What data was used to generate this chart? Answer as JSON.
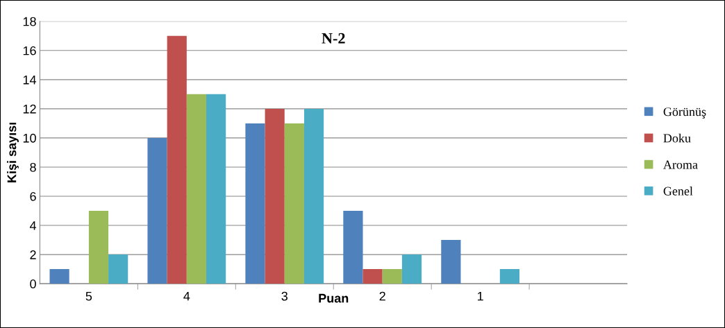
{
  "chart_data": {
    "type": "bar",
    "title": "N-2",
    "xlabel": "Puan",
    "ylabel": "Kişi sayısı",
    "categories": [
      "5",
      "4",
      "3",
      "2",
      "1",
      null
    ],
    "series": [
      {
        "name": "Görünüş",
        "color": "#4f81bd",
        "values": [
          1,
          10,
          11,
          5,
          3,
          null
        ]
      },
      {
        "name": "Doku",
        "color": "#c0504d",
        "values": [
          0,
          17,
          12,
          1,
          0,
          null
        ]
      },
      {
        "name": "Aroma",
        "color": "#9bbb59",
        "values": [
          5,
          13,
          11,
          1,
          0,
          null
        ]
      },
      {
        "name": "Genel",
        "color": "#4bacc6",
        "values": [
          2,
          13,
          12,
          2,
          1,
          null
        ]
      }
    ],
    "ylim": [
      0,
      18
    ],
    "yticks": [
      0,
      2,
      4,
      6,
      8,
      10,
      12,
      14,
      16,
      18
    ],
    "grid": "y",
    "legend": "right"
  }
}
